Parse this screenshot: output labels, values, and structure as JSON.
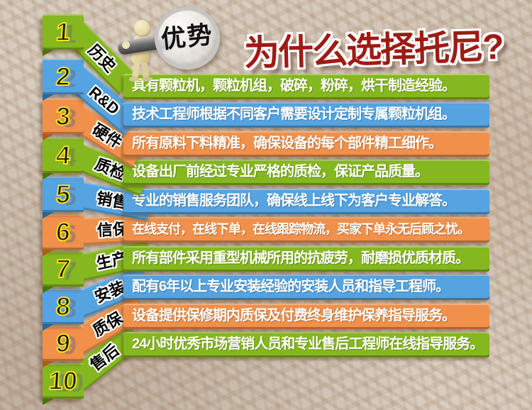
{
  "title": "为什么选择托尼?",
  "badge": {
    "label": "优势"
  },
  "rows": [
    {
      "num": "1",
      "tag": "历史",
      "color": "green",
      "text": "具有颗粒机，颗粒机组，破碎，粉碎，烘干制造经验。"
    },
    {
      "num": "2",
      "tag": "R&D",
      "color": "blue",
      "text": "技术工程师根据不同客户需要设计定制专属颗粒机组。"
    },
    {
      "num": "3",
      "tag": "硬件",
      "color": "orange",
      "text": "所有原料下料精准，确保设备的每个部件精工细作。"
    },
    {
      "num": "4",
      "tag": "质检",
      "color": "green",
      "text": "设备出厂前经过专业严格的质检，保证产品质量。"
    },
    {
      "num": "5",
      "tag": "销售",
      "color": "blue",
      "text": "专业的销售服务团队，确保线上线下为客户专业解答。"
    },
    {
      "num": "6",
      "tag": "信保",
      "color": "orange",
      "text": "在线支付，在线下单，在线跟踪物流，买家下单永无后顾之忧。"
    },
    {
      "num": "7",
      "tag": "生产",
      "color": "green",
      "text": "所有部件采用重型机械所用的抗疲劳，耐磨损优质材质。"
    },
    {
      "num": "8",
      "tag": "安装",
      "color": "blue",
      "text": "配有6年以上专业安装经验的安装人员和指导工程师。"
    },
    {
      "num": "9",
      "tag": "质保",
      "color": "orange",
      "text": "设备提供保修期内质保及付费终身维护保养指导服务。"
    },
    {
      "num": "10",
      "tag": "售后",
      "color": "green",
      "text": "24小时优秀市场营销人员和专业售后工程师在线指导服务。"
    }
  ],
  "palette": {
    "green": "#85b71f",
    "blue": "#55a3e0",
    "orange": "#f0904a",
    "title_red": "#9e1b14",
    "number_fill": "#151515",
    "number_outline": "#f2e31b",
    "bar_text": "#ffffff"
  }
}
